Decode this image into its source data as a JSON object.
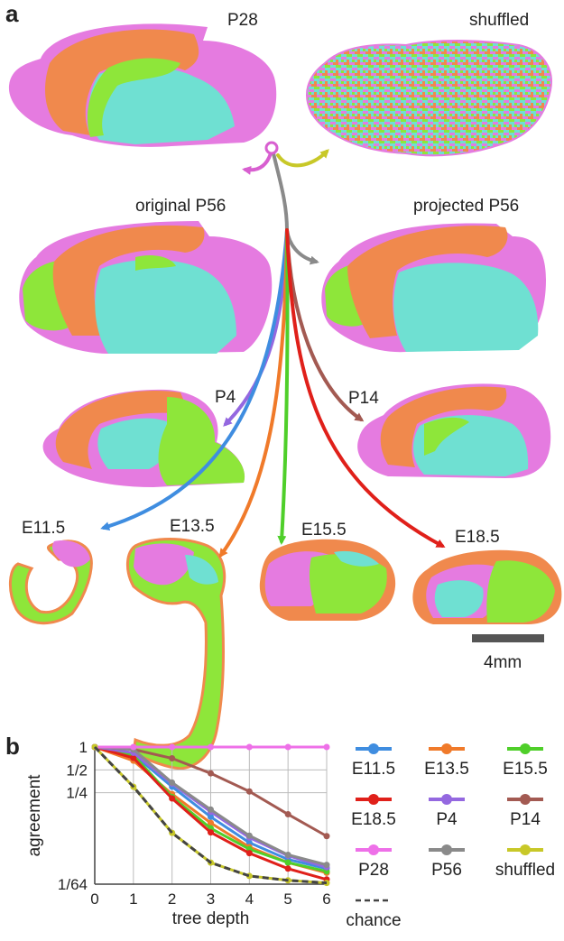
{
  "panel_a": {
    "letter": "a",
    "labels": {
      "p28": "P28",
      "shuffled": "shuffled",
      "original_p56": "original P56",
      "projected_p56": "projected P56",
      "p4": "P4",
      "p14": "P14",
      "e11_5": "E11.5",
      "e13_5": "E13.5",
      "e15_5": "E15.5",
      "e18_5": "E18.5"
    },
    "scale_bar": "4mm",
    "region_colors": {
      "magenta": "#e57be0",
      "orange": "#f0894d",
      "cyan": "#6fe0d2",
      "green": "#8ee63a"
    }
  },
  "panel_b": {
    "letter": "b"
  },
  "chart_data": {
    "type": "line",
    "xlabel": "tree depth",
    "ylabel": "agreement",
    "x": [
      0,
      1,
      2,
      3,
      4,
      5,
      6
    ],
    "xlim": [
      0,
      6
    ],
    "y_scale": "log2",
    "ylim": [
      0.0156,
      1
    ],
    "yticks": [
      {
        "value": 1,
        "label": "1"
      },
      {
        "value": 0.5,
        "label": "1/2"
      },
      {
        "value": 0.25,
        "label": "1/4"
      },
      {
        "value": 0.015625,
        "label": "1/64"
      }
    ],
    "grid": true,
    "legend_position": "right",
    "series": [
      {
        "name": "E11.5",
        "color": "#3f8de0",
        "values": [
          1,
          0.8,
          0.3,
          0.12,
          0.055,
          0.033,
          0.025
        ]
      },
      {
        "name": "E13.5",
        "color": "#f07a2a",
        "values": [
          1,
          0.66,
          0.24,
          0.1,
          0.048,
          0.03,
          0.022
        ]
      },
      {
        "name": "E15.5",
        "color": "#4fcf2a",
        "values": [
          1,
          0.78,
          0.22,
          0.085,
          0.045,
          0.03,
          0.023
        ]
      },
      {
        "name": "E18.5",
        "color": "#e0201a",
        "values": [
          1,
          0.72,
          0.21,
          0.075,
          0.04,
          0.025,
          0.018
        ]
      },
      {
        "name": "P4",
        "color": "#9468e0",
        "values": [
          1,
          0.84,
          0.33,
          0.14,
          0.064,
          0.037,
          0.026
        ]
      },
      {
        "name": "P14",
        "color": "#a35a52",
        "values": [
          1,
          0.93,
          0.71,
          0.45,
          0.26,
          0.13,
          0.067
        ]
      },
      {
        "name": "P28",
        "color": "#ee70e8",
        "values": [
          1,
          1,
          1,
          1,
          1,
          1,
          1
        ]
      },
      {
        "name": "P56",
        "color": "#8a8a8a",
        "values": [
          1,
          0.93,
          0.34,
          0.15,
          0.068,
          0.038,
          0.028
        ]
      },
      {
        "name": "shuffled",
        "color": "#c8c828",
        "values": [
          1,
          0.3,
          0.074,
          0.03,
          0.02,
          0.0175,
          0.0162
        ]
      },
      {
        "name": "chance",
        "color": "#444444",
        "dashed": true,
        "values": [
          1,
          0.3,
          0.074,
          0.03,
          0.02,
          0.0175,
          0.0162
        ]
      }
    ]
  }
}
